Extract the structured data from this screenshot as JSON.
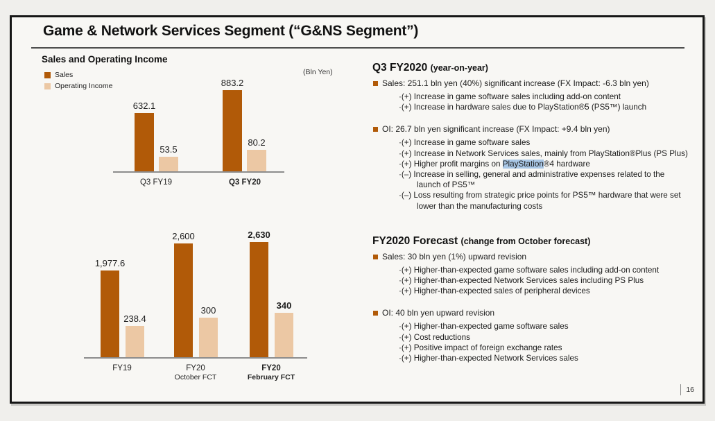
{
  "page": {
    "number": "16",
    "background": "#f0efec",
    "slide_background": "#f8f7f4",
    "highlight_color": "#a9c7e6"
  },
  "title": "Game & Network Services Segment (“G&NS Segment”)",
  "left": {
    "heading": "Sales and Operating Income",
    "unit_label": "(Bln Yen)",
    "legend": [
      {
        "label": "Sales",
        "color": "#b15a08"
      },
      {
        "label": "Operating Income",
        "color": "#ecc8a4"
      }
    ]
  },
  "chart_data": [
    {
      "type": "bar",
      "title": "Sales and Operating Income — Q3",
      "unit": "Bln Yen",
      "categories": [
        "Q3 FY19",
        "Q3 FY20"
      ],
      "emphasis_category": "Q3 FY20",
      "legend_position": "top-left",
      "grid": false,
      "series": [
        {
          "name": "Sales",
          "color": "#b15a08",
          "values": [
            632.1,
            883.2
          ],
          "display": [
            "632.1",
            "883.2"
          ]
        },
        {
          "name": "Operating Income",
          "color": "#ecc8a4",
          "values": [
            53.5,
            80.2
          ],
          "display": [
            "53.5",
            "80.2"
          ]
        }
      ]
    },
    {
      "type": "bar",
      "title": "Sales and Operating Income — Full Year",
      "unit": "Bln Yen",
      "categories": [
        "FY19",
        "FY20 October FCT",
        "FY20 February FCT"
      ],
      "category_lines": [
        [
          "FY19"
        ],
        [
          "FY20",
          "October FCT"
        ],
        [
          "FY20",
          "February FCT"
        ]
      ],
      "emphasis_category": "FY20 February FCT",
      "grid": false,
      "series": [
        {
          "name": "Sales",
          "color": "#b15a08",
          "values": [
            1977.6,
            2600,
            2630
          ],
          "display": [
            "1,977.6",
            "2,600",
            "2,630"
          ]
        },
        {
          "name": "Operating Income",
          "color": "#ecc8a4",
          "values": [
            238.4,
            300,
            340
          ],
          "display": [
            "238.4",
            "300",
            "340"
          ]
        }
      ]
    }
  ],
  "right": {
    "sections": [
      {
        "heading": "Q3 FY2020",
        "suffix": "(year-on-year)",
        "bullets": [
          {
            "text": "Sales: 251.1 bln yen (40%) significant increase (FX Impact: -6.3 bln yen)",
            "subs": [
              "·(+) Increase in game software sales including add-on content",
              "·(+) Increase in hardware sales due to PlayStation®5 (PS5™) launch"
            ]
          },
          {
            "text": "OI: 26.7 bln yen significant increase (FX Impact: +9.4 bln yen)",
            "subs": [
              "·(+) Increase in game software sales",
              "·(+) Increase in Network Services sales, mainly from PlayStation®Plus (PS Plus)",
              {
                "pre": "·(+) Higher profit margins on ",
                "highlight": "PlayStation",
                "post": "®4 hardware"
              },
              "·(–) Increase in selling, general and administrative expenses related to the\nlaunch of PS5™",
              "·(–) Loss resulting from strategic price points for PS5™ hardware that were set\nlower than the manufacturing costs"
            ]
          }
        ]
      },
      {
        "heading": "FY2020 Forecast",
        "suffix": "(change from October forecast)",
        "bullets": [
          {
            "text": "Sales: 30 bln yen (1%) upward revision",
            "subs": [
              "·(+) Higher-than-expected game software sales including add-on content",
              "·(+) Higher-than-expected Network Services sales including PS Plus",
              "·(+) Higher-than-expected sales of peripheral devices"
            ]
          },
          {
            "text": "OI: 40 bln yen upward revision",
            "subs": [
              "·(+) Higher-than-expected game software sales",
              "·(+) Cost reductions",
              "·(+) Positive impact of foreign exchange rates",
              "·(+) Higher-than-expected Network Services sales"
            ]
          }
        ]
      }
    ]
  }
}
